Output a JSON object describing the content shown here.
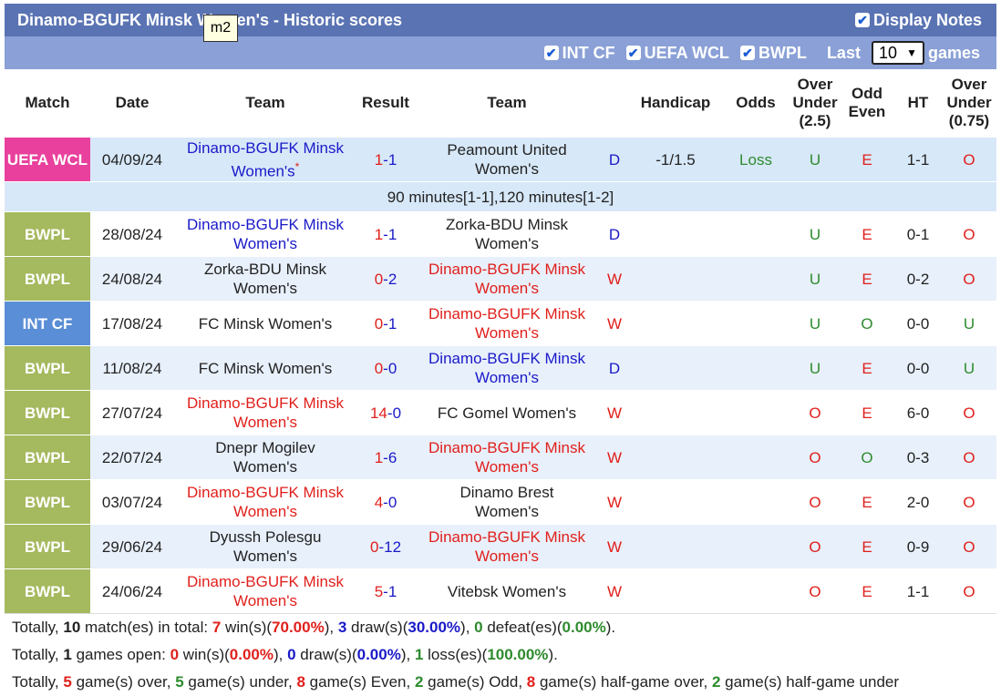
{
  "header": {
    "title": "Dinamo-BGUFK Minsk Women's - Historic scores",
    "display_notes_label": "Display Notes",
    "tooltip": "m2"
  },
  "filters": {
    "int_cf": "INT CF",
    "uefa_wcl": "UEFA WCL",
    "bwpl": "BWPL",
    "last_label": "Last",
    "last_value": "10",
    "games_label": "games"
  },
  "columns": {
    "match": "Match",
    "date": "Date",
    "team_home": "Team",
    "result": "Result",
    "team_away": "Team",
    "handicap": "Handicap",
    "odds": "Odds",
    "over_under": "Over Under (2.5)",
    "odd_even": "Odd Even",
    "ht": "HT",
    "over_under_ht": "Over Under (0.75)"
  },
  "league_colors": {
    "UEFA WCL": "#e8409c",
    "BWPL": "#a5b95e",
    "INT CF": "#5a8ed6"
  },
  "rows": [
    {
      "league": "UEFA WCL",
      "date": "04/09/24",
      "home": "Dinamo-BGUFK Minsk Women's",
      "home_star": "*",
      "home_class": "team-blue",
      "hs": "1",
      "as": "1",
      "away": "Peamount United Women's",
      "away_class": "",
      "res": "D",
      "handicap": "-1/1.5",
      "odds": "Loss",
      "ou": "U",
      "oe": "E",
      "ht": "1-1",
      "ou2": "O",
      "style": "first"
    },
    {
      "league": "BWPL",
      "date": "28/08/24",
      "home": "Dinamo-BGUFK Minsk Women's",
      "home_class": "team-blue",
      "hs": "1",
      "as": "1",
      "away": "Zorka-BDU Minsk Women's",
      "away_class": "",
      "res": "D",
      "handicap": "",
      "odds": "",
      "ou": "U",
      "oe": "E",
      "ht": "0-1",
      "ou2": "O",
      "style": "norm"
    },
    {
      "league": "BWPL",
      "date": "24/08/24",
      "home": "Zorka-BDU Minsk Women's",
      "home_class": "",
      "hs": "0",
      "as": "2",
      "away": "Dinamo-BGUFK Minsk Women's",
      "away_class": "team-red",
      "res": "W",
      "handicap": "",
      "odds": "",
      "ou": "U",
      "oe": "E",
      "ht": "0-2",
      "ou2": "O",
      "style": "alt"
    },
    {
      "league": "INT CF",
      "date": "17/08/24",
      "home": "FC Minsk Women's",
      "home_class": "",
      "hs": "0",
      "as": "1",
      "away": "Dinamo-BGUFK Minsk Women's",
      "away_class": "team-red",
      "res": "W",
      "handicap": "",
      "odds": "",
      "ou": "U",
      "oe": "O",
      "ht": "0-0",
      "ou2": "U",
      "style": "norm"
    },
    {
      "league": "BWPL",
      "date": "11/08/24",
      "home": "FC Minsk Women's",
      "home_class": "",
      "hs": "0",
      "as": "0",
      "away": "Dinamo-BGUFK Minsk Women's",
      "away_class": "team-blue",
      "res": "D",
      "handicap": "",
      "odds": "",
      "ou": "U",
      "oe": "E",
      "ht": "0-0",
      "ou2": "U",
      "style": "alt"
    },
    {
      "league": "BWPL",
      "date": "27/07/24",
      "home": "Dinamo-BGUFK Minsk Women's",
      "home_class": "team-red",
      "hs": "14",
      "as": "0",
      "away": "FC Gomel Women's",
      "away_class": "",
      "res": "W",
      "handicap": "",
      "odds": "",
      "ou": "O",
      "oe": "E",
      "ht": "6-0",
      "ou2": "O",
      "style": "norm"
    },
    {
      "league": "BWPL",
      "date": "22/07/24",
      "home": "Dnepr Mogilev Women's",
      "home_class": "",
      "hs": "1",
      "as": "6",
      "away": "Dinamo-BGUFK Minsk Women's",
      "away_class": "team-red",
      "res": "W",
      "handicap": "",
      "odds": "",
      "ou": "O",
      "oe": "O",
      "ht": "0-3",
      "ou2": "O",
      "style": "alt"
    },
    {
      "league": "BWPL",
      "date": "03/07/24",
      "home": "Dinamo-BGUFK Minsk Women's",
      "home_class": "team-red",
      "hs": "4",
      "as": "0",
      "away": "Dinamo Brest Women's",
      "away_class": "",
      "res": "W",
      "handicap": "",
      "odds": "",
      "ou": "O",
      "oe": "E",
      "ht": "2-0",
      "ou2": "O",
      "style": "norm"
    },
    {
      "league": "BWPL",
      "date": "29/06/24",
      "home": "Dyussh Polesgu Women's",
      "home_class": "",
      "hs": "0",
      "as": "12",
      "away": "Dinamo-BGUFK Minsk Women's",
      "away_class": "team-red",
      "res": "W",
      "handicap": "",
      "odds": "",
      "ou": "O",
      "oe": "E",
      "ht": "0-9",
      "ou2": "O",
      "style": "alt"
    },
    {
      "league": "BWPL",
      "date": "24/06/24",
      "home": "Dinamo-BGUFK Minsk Women's",
      "home_class": "team-red",
      "hs": "5",
      "as": "1",
      "away": "Vitebsk Women's",
      "away_class": "",
      "res": "W",
      "handicap": "",
      "odds": "",
      "ou": "O",
      "oe": "E",
      "ht": "1-1",
      "ou2": "O",
      "style": "norm"
    }
  ],
  "note_row": "90 minutes[1-1],120 minutes[1-2]",
  "summary": {
    "line1": {
      "p1": "Totally, ",
      "n1": "10",
      "p2": " match(es) in total: ",
      "w": "7",
      "p3": " win(s)(",
      "wp": "70.00%",
      "p4": "), ",
      "d": "3",
      "p5": " draw(s)(",
      "dp": "30.00%",
      "p6": "), ",
      "l": "0",
      "p7": " defeat(es)(",
      "lp": "0.00%",
      "p8": ")."
    },
    "line2": {
      "p1": "Totally, ",
      "n1": "1",
      "p2": " games open: ",
      "w": "0",
      "p3": " win(s)(",
      "wp": "0.00%",
      "p4": "), ",
      "d": "0",
      "p5": " draw(s)(",
      "dp": "0.00%",
      "p6": "), ",
      "l": "1",
      "p7": " loss(es)(",
      "lp": "100.00%",
      "p8": ")."
    },
    "line3": {
      "p1": "Totally, ",
      "over": "5",
      "p2": " game(s) over, ",
      "under": "5",
      "p3": " game(s) under, ",
      "even": "8",
      "p4": " game(s) Even, ",
      "odd": "2",
      "p5": " game(s) Odd, ",
      "hover": "8",
      "p6": " game(s) half-game over, ",
      "hunder": "2",
      "p7": " game(s) half-game under"
    }
  }
}
